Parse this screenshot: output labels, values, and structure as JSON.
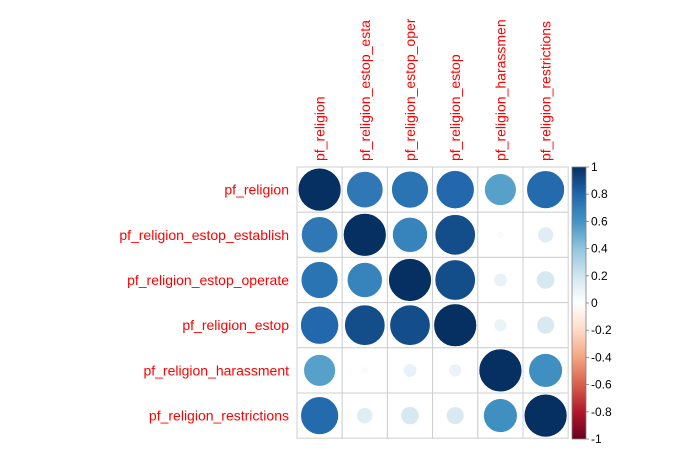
{
  "chart_data": {
    "type": "heatmap",
    "subtype": "correlation-circle-matrix",
    "variables": [
      "pf_religion",
      "pf_religion_estop_establish",
      "pf_religion_estop_operate",
      "pf_religion_estop",
      "pf_religion_harassment",
      "pf_religion_restrictions"
    ],
    "column_labels": [
      "pf_religion",
      "pf_religion_estop_esta",
      "pf_religion_estop_oper",
      "pf_religion_estop",
      "pf_religion_harassmen",
      "pf_religion_restrictions"
    ],
    "matrix": [
      [
        1.0,
        0.72,
        0.74,
        0.79,
        0.55,
        0.78
      ],
      [
        0.72,
        1.0,
        0.67,
        0.89,
        0.03,
        0.14
      ],
      [
        0.74,
        0.67,
        1.0,
        0.89,
        0.1,
        0.18
      ],
      [
        0.79,
        0.89,
        0.89,
        1.0,
        0.09,
        0.17
      ],
      [
        0.55,
        0.03,
        0.1,
        0.09,
        1.0,
        0.62
      ],
      [
        0.78,
        0.14,
        0.18,
        0.17,
        0.62,
        1.0
      ]
    ],
    "colorbar": {
      "range": [
        -1,
        1
      ],
      "ticks": [
        "1",
        "0.8",
        "0.6",
        "0.4",
        "0.2",
        "0",
        "-0.2",
        "-0.4",
        "-0.6",
        "-0.8",
        "-1"
      ],
      "low_color": "#67001f",
      "mid_color": "#ffffff",
      "high_color": "#053061"
    },
    "label_color": "#ff0000",
    "grid": true
  }
}
